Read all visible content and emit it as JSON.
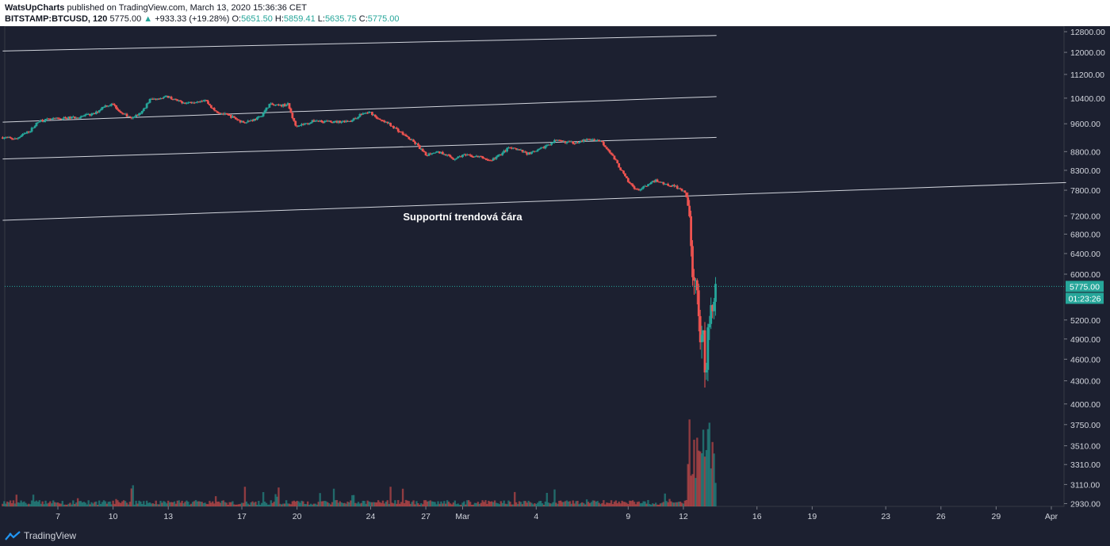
{
  "header": {
    "author": "WatsUpCharts",
    "published": "published on TradingView.com, March 13, 2020 15:36:36 CET",
    "symbol": "BITSTAMP:BTCUSD, 120",
    "last": "5775.00",
    "change_arrow": "▲",
    "change": "+933.33 (+19.28%)",
    "o_label": "O:",
    "o": "5651.50",
    "h_label": "H:",
    "h": "5859.41",
    "l_label": "L:",
    "l": "5635.75",
    "c_label": "C:",
    "c": "5775.00"
  },
  "footer": {
    "brand": "TradingView",
    "icon": "tradingview-logo-icon"
  },
  "colors": {
    "background": "#1c2030",
    "up": "#26a69a",
    "down": "#ef5350",
    "line": "#d1d4dc",
    "price_line": "#26a69a"
  },
  "chart_data": {
    "type": "candlestick",
    "title": "",
    "x_ticks": [
      "7",
      "10",
      "13",
      "17",
      "20",
      "24",
      "27",
      "Mar",
      "4",
      "9",
      "12",
      "16",
      "19",
      "23",
      "26",
      "29",
      "Apr"
    ],
    "x_tick_days": [
      7,
      10,
      13,
      17,
      20,
      24,
      27,
      29,
      33,
      38,
      41,
      45,
      48,
      52,
      55,
      58,
      61
    ],
    "y_ticks": [
      12800,
      12000,
      11200,
      10400,
      9600,
      8800,
      8300,
      7800,
      7200,
      6800,
      6400,
      6000,
      5200,
      4900,
      4600,
      4300,
      4000,
      3750,
      3510,
      3310,
      3110,
      2930
    ],
    "y_tick_labels": [
      "12800.00",
      "12000.00",
      "11200.00",
      "10400.00",
      "9600.00",
      "8800.00",
      "8300.00",
      "7800.00",
      "7200.00",
      "6800.00",
      "6400.00",
      "6000.00",
      "5200.00",
      "4900.00",
      "4600.00",
      "4300.00",
      "4000.00",
      "3750.00",
      "3510.00",
      "3310.00",
      "3110.00",
      "2930.00"
    ],
    "y_scale": "log",
    "last_price": 5775,
    "last_price_label": "5775.00",
    "countdown": "01:23:26",
    "price_path": [
      {
        "day": 4.0,
        "p": 9200
      },
      {
        "day": 4.7,
        "p": 9150
      },
      {
        "day": 5.5,
        "p": 9400
      },
      {
        "day": 6.0,
        "p": 9700
      },
      {
        "day": 7.0,
        "p": 9750
      },
      {
        "day": 8.0,
        "p": 9800
      },
      {
        "day": 9.0,
        "p": 9900
      },
      {
        "day": 9.5,
        "p": 10150
      },
      {
        "day": 10.0,
        "p": 10200
      },
      {
        "day": 10.5,
        "p": 9900
      },
      {
        "day": 11.0,
        "p": 9800
      },
      {
        "day": 11.5,
        "p": 9900
      },
      {
        "day": 12.0,
        "p": 10350
      },
      {
        "day": 12.5,
        "p": 10400
      },
      {
        "day": 13.0,
        "p": 10450
      },
      {
        "day": 13.5,
        "p": 10300
      },
      {
        "day": 14.0,
        "p": 10250
      },
      {
        "day": 15.0,
        "p": 10350
      },
      {
        "day": 15.5,
        "p": 10000
      },
      {
        "day": 16.0,
        "p": 9900
      },
      {
        "day": 16.5,
        "p": 9800
      },
      {
        "day": 17.0,
        "p": 9650
      },
      {
        "day": 17.5,
        "p": 9700
      },
      {
        "day": 18.0,
        "p": 9800
      },
      {
        "day": 18.5,
        "p": 10200
      },
      {
        "day": 19.0,
        "p": 10150
      },
      {
        "day": 19.5,
        "p": 10200
      },
      {
        "day": 19.9,
        "p": 9550
      },
      {
        "day": 20.5,
        "p": 9600
      },
      {
        "day": 21.0,
        "p": 9700
      },
      {
        "day": 22.0,
        "p": 9650
      },
      {
        "day": 23.0,
        "p": 9700
      },
      {
        "day": 23.5,
        "p": 9900
      },
      {
        "day": 24.0,
        "p": 9950
      },
      {
        "day": 24.5,
        "p": 9700
      },
      {
        "day": 25.0,
        "p": 9600
      },
      {
        "day": 25.5,
        "p": 9400
      },
      {
        "day": 26.0,
        "p": 9200
      },
      {
        "day": 26.5,
        "p": 9000
      },
      {
        "day": 27.0,
        "p": 8700
      },
      {
        "day": 27.5,
        "p": 8800
      },
      {
        "day": 28.0,
        "p": 8750
      },
      {
        "day": 28.5,
        "p": 8600
      },
      {
        "day": 29.0,
        "p": 8700
      },
      {
        "day": 30.0,
        "p": 8650
      },
      {
        "day": 30.5,
        "p": 8550
      },
      {
        "day": 31.0,
        "p": 8700
      },
      {
        "day": 31.5,
        "p": 8900
      },
      {
        "day": 32.0,
        "p": 8850
      },
      {
        "day": 32.5,
        "p": 8750
      },
      {
        "day": 33.0,
        "p": 8800
      },
      {
        "day": 33.5,
        "p": 8950
      },
      {
        "day": 34.0,
        "p": 9100
      },
      {
        "day": 35.0,
        "p": 9050
      },
      {
        "day": 36.0,
        "p": 9150
      },
      {
        "day": 36.5,
        "p": 9100
      },
      {
        "day": 37.0,
        "p": 8800
      },
      {
        "day": 37.5,
        "p": 8400
      },
      {
        "day": 38.0,
        "p": 8000
      },
      {
        "day": 38.5,
        "p": 7800
      },
      {
        "day": 39.0,
        "p": 7900
      },
      {
        "day": 39.5,
        "p": 8050
      },
      {
        "day": 40.0,
        "p": 7950
      },
      {
        "day": 40.5,
        "p": 7900
      },
      {
        "day": 41.0,
        "p": 7800
      },
      {
        "day": 41.3,
        "p": 7500
      },
      {
        "day": 41.5,
        "p": 6000
      },
      {
        "day": 41.7,
        "p": 5900
      },
      {
        "day": 41.9,
        "p": 4850
      },
      {
        "day": 42.1,
        "p": 4950
      },
      {
        "day": 42.2,
        "p": 4100
      },
      {
        "day": 42.35,
        "p": 5100
      },
      {
        "day": 42.5,
        "p": 5400
      },
      {
        "day": 42.6,
        "p": 5300
      },
      {
        "day": 42.7,
        "p": 5700
      },
      {
        "day": 42.8,
        "p": 5775
      }
    ],
    "trendlines": [
      {
        "start_day": 4.0,
        "start_price": 12050,
        "end_day": 42.8,
        "end_price": 12650
      },
      {
        "start_day": 4.0,
        "start_price": 9650,
        "end_day": 42.8,
        "end_price": 10450
      },
      {
        "start_day": 4.0,
        "start_price": 8600,
        "end_day": 42.8,
        "end_price": 9200
      },
      {
        "start_day": 4.0,
        "start_price": 7100,
        "end_day": 61.8,
        "end_price": 7990
      }
    ],
    "annotation": {
      "text": "Supportní trendová čára",
      "day": 29.0,
      "price": 7170
    }
  }
}
